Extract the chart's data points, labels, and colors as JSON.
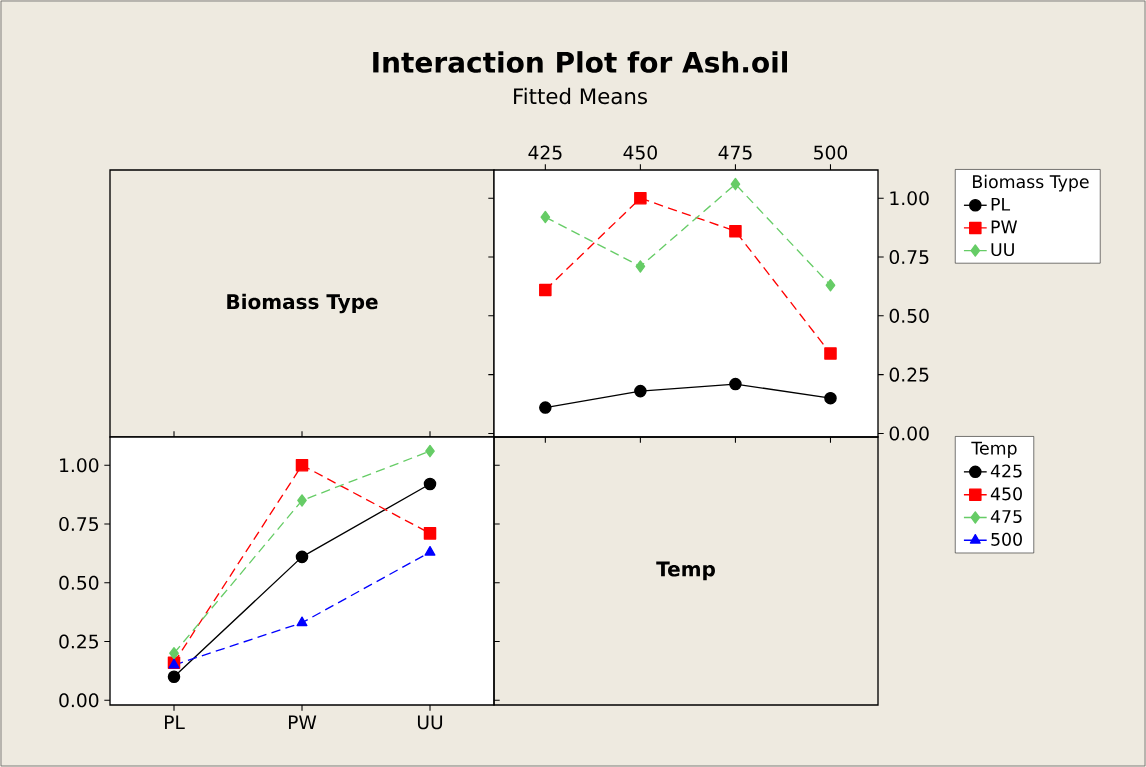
{
  "chart_data": [
    {
      "type": "other",
      "annotations": [
        "Biomass Type"
      ]
    },
    {
      "type": "line",
      "title": "Interaction Plot for Ash.oil",
      "subtitle": "Fitted Means",
      "legend_title": "Biomass Type",
      "legend": "right",
      "x": [
        425,
        450,
        475,
        500
      ],
      "xlim": [
        411.5,
        512.5
      ],
      "xticks": [
        425,
        450,
        475,
        500
      ],
      "ylim": [
        -0.015,
        1.12
      ],
      "yticks": [
        {
          "value": 0,
          "label": "0.00"
        },
        {
          "value": 0.25,
          "label": "0.25"
        },
        {
          "value": 0.5,
          "label": "0.50"
        },
        {
          "value": 0.75,
          "label": "0.75"
        },
        {
          "value": 1,
          "label": "1.00"
        }
      ],
      "series": [
        {
          "name": "PL",
          "color": "#000000",
          "marker": "circle",
          "line_style": "solid",
          "values": [
            0.11,
            0.18,
            0.21,
            0.15
          ]
        },
        {
          "name": "PW",
          "color": "#ff0000",
          "marker": "square",
          "line_style": "dashed",
          "values": [
            0.61,
            1.0,
            0.86,
            0.34
          ]
        },
        {
          "name": "UU",
          "color": "#66cc66",
          "marker": "diamond",
          "line_style": "dashed",
          "values": [
            0.92,
            0.71,
            1.06,
            0.63
          ]
        }
      ]
    },
    {
      "type": "line",
      "legend_title": "Temp",
      "legend": "right",
      "categories": [
        "PL",
        "PW",
        "UU"
      ],
      "ylim": [
        -0.02,
        1.12
      ],
      "yticks": [
        {
          "value": 0,
          "label": "0.00"
        },
        {
          "value": 0.25,
          "label": "0.25"
        },
        {
          "value": 0.5,
          "label": "0.50"
        },
        {
          "value": 0.75,
          "label": "0.75"
        },
        {
          "value": 1,
          "label": "1.00"
        }
      ],
      "series": [
        {
          "name": "425",
          "color": "#000000",
          "marker": "circle",
          "line_style": "solid",
          "values": [
            0.1,
            0.61,
            0.92
          ]
        },
        {
          "name": "450",
          "color": "#ff0000",
          "marker": "square",
          "line_style": "dashed",
          "values": [
            0.16,
            1.0,
            0.71
          ]
        },
        {
          "name": "475",
          "color": "#66cc66",
          "marker": "diamond",
          "line_style": "dashed",
          "values": [
            0.2,
            0.85,
            1.06
          ]
        },
        {
          "name": "500",
          "color": "#0000ff",
          "marker": "triangle",
          "line_style": "dashed",
          "values": [
            0.15,
            0.33,
            0.63
          ]
        }
      ]
    },
    {
      "type": "other",
      "annotations": [
        "Temp"
      ]
    }
  ]
}
